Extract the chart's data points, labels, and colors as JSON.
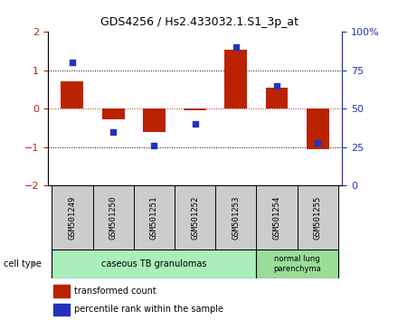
{
  "title": "GDS4256 / Hs2.433032.1.S1_3p_at",
  "samples": [
    "GSM501249",
    "GSM501250",
    "GSM501251",
    "GSM501252",
    "GSM501253",
    "GSM501254",
    "GSM501255"
  ],
  "red_values": [
    0.72,
    -0.28,
    -0.6,
    -0.05,
    1.55,
    0.55,
    -1.05
  ],
  "blue_values": [
    80,
    35,
    26,
    40,
    90,
    65,
    28
  ],
  "ylim_left": [
    -2,
    2
  ],
  "ylim_right": [
    0,
    100
  ],
  "left_yticks": [
    -2,
    -1,
    0,
    1,
    2
  ],
  "right_yticks": [
    0,
    25,
    50,
    75,
    100
  ],
  "right_yticklabels": [
    "0",
    "25",
    "50",
    "75",
    "100%"
  ],
  "red_color": "#bb2200",
  "blue_color": "#2233bb",
  "bar_width": 0.55,
  "group1_label": "caseous TB granulomas",
  "group2_label": "normal lung\nparenchyma",
  "group1_indices": [
    0,
    1,
    2,
    3,
    4
  ],
  "group2_indices": [
    5,
    6
  ],
  "cell_type_label": "cell type",
  "legend_red": "transformed count",
  "legend_blue": "percentile rank within the sample",
  "group1_color": "#aaeebb",
  "group2_color": "#99dd99",
  "sample_box_color": "#cccccc",
  "bg_color": "#ffffff"
}
